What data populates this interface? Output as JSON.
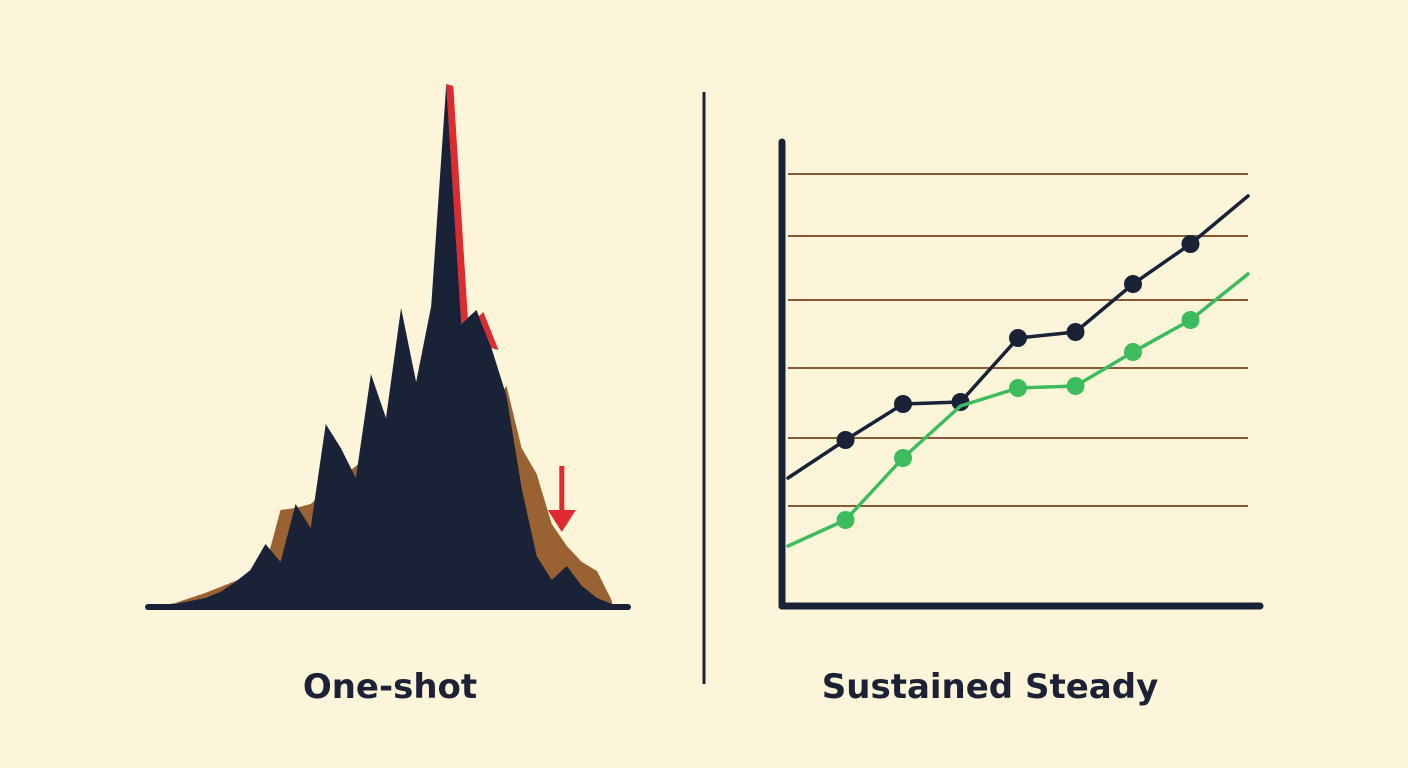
{
  "colors": {
    "background": "#fdf5d9",
    "navy": "#1a2238",
    "brown": "#9a6233",
    "red": "#e02a2f",
    "green": "#3cbc5c",
    "gridline": "#8a5a36"
  },
  "panels": {
    "left": {
      "caption": "One-shot"
    },
    "right": {
      "caption": "Sustained Steady"
    }
  },
  "chart_data": [
    {
      "type": "area",
      "title": "One-shot",
      "xlabel": "",
      "ylabel": "",
      "axes": "baseline-only",
      "grid": false,
      "x": [
        0,
        1,
        2,
        3,
        4,
        5,
        6,
        7,
        8,
        9,
        10,
        11,
        12,
        13,
        14,
        15,
        16,
        17,
        18,
        19,
        20,
        21,
        22,
        23,
        24,
        25,
        26,
        27,
        28,
        29,
        30
      ],
      "series": [
        {
          "role": "foreground",
          "color": "navy",
          "values": [
            0,
            2,
            5,
            8,
            14,
            24,
            36,
            62,
            44,
            102,
            78,
            182,
            158,
            128,
            232,
            188,
            298,
            224,
            300,
            522,
            282,
            296,
            258,
            210,
            118,
            50,
            26,
            40,
            20,
            8,
            2
          ]
        },
        {
          "role": "background",
          "color": "brown",
          "values": [
            0,
            3,
            8,
            13,
            19,
            25,
            32,
            40,
            96,
            98,
            102,
            115,
            128,
            140,
            150,
            160,
            168,
            172,
            175,
            178,
            180,
            182,
            200,
            220,
            158,
            132,
            82,
            60,
            44,
            35,
            5
          ]
        },
        {
          "role": "decline-highlight",
          "color": "red",
          "x": [
            19,
            20,
            21,
            22
          ],
          "values": [
            522,
            282,
            296,
            258
          ]
        }
      ],
      "annotations": [
        {
          "type": "arrow",
          "direction": "down",
          "color": "red",
          "near_x": 27
        }
      ]
    },
    {
      "type": "line",
      "title": "Sustained Steady",
      "xlabel": "",
      "ylabel": "",
      "grid": true,
      "gridlines_y": [
        100,
        168,
        238,
        306,
        370,
        432
      ],
      "ylim": [
        0,
        500
      ],
      "x": [
        0,
        1,
        2,
        3,
        4,
        5,
        6,
        7,
        8
      ],
      "series": [
        {
          "color": "navy",
          "values": [
            128,
            166,
            202,
            204,
            268,
            274,
            322,
            362,
            410
          ],
          "markers": [
            false,
            true,
            true,
            true,
            true,
            true,
            true,
            true,
            false
          ]
        },
        {
          "color": "green",
          "values": [
            60,
            86,
            148,
            200,
            218,
            220,
            254,
            286,
            332
          ],
          "markers": [
            false,
            true,
            true,
            false,
            true,
            true,
            true,
            true,
            false
          ]
        }
      ]
    }
  ]
}
